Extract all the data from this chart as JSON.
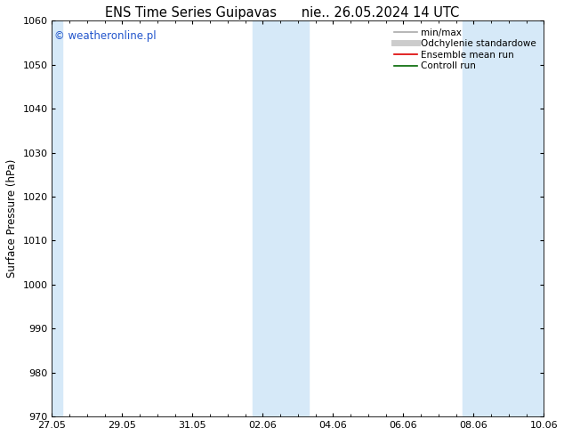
{
  "title_left": "ENS Time Series Guipavas",
  "title_right": "nie.. 26.05.2024 14 UTC",
  "ylabel": "Surface Pressure (hPa)",
  "ylim": [
    970,
    1060
  ],
  "yticks": [
    970,
    980,
    990,
    1000,
    1010,
    1020,
    1030,
    1040,
    1050,
    1060
  ],
  "xtick_labels": [
    "27.05",
    "29.05",
    "31.05",
    "02.06",
    "04.06",
    "06.06",
    "08.06",
    "10.06"
  ],
  "xtick_positions": [
    0,
    2,
    4,
    6,
    8,
    10,
    12,
    14
  ],
  "x_total_days": 14,
  "shaded_bands": [
    {
      "xmin": -0.05,
      "xmax": 0.3
    },
    {
      "xmin": 5.7,
      "xmax": 7.3
    },
    {
      "xmin": 11.7,
      "xmax": 14.05
    }
  ],
  "band_color": "#d6e9f8",
  "watermark": "© weatheronline.pl",
  "watermark_color": "#2255cc",
  "legend_items": [
    {
      "label": "min/max",
      "color": "#aaaaaa",
      "lw": 1.2
    },
    {
      "label": "Odchylenie standardowe",
      "color": "#cccccc",
      "lw": 5
    },
    {
      "label": "Ensemble mean run",
      "color": "#dd0000",
      "lw": 1.2
    },
    {
      "label": "Controll run",
      "color": "#006600",
      "lw": 1.2
    }
  ],
  "bg_color": "#ffffff",
  "plot_bg_color": "#ffffff",
  "title_fontsize": 10.5,
  "watermark_fontsize": 8.5,
  "ylabel_fontsize": 8.5,
  "tick_fontsize": 8,
  "legend_fontsize": 7.5
}
